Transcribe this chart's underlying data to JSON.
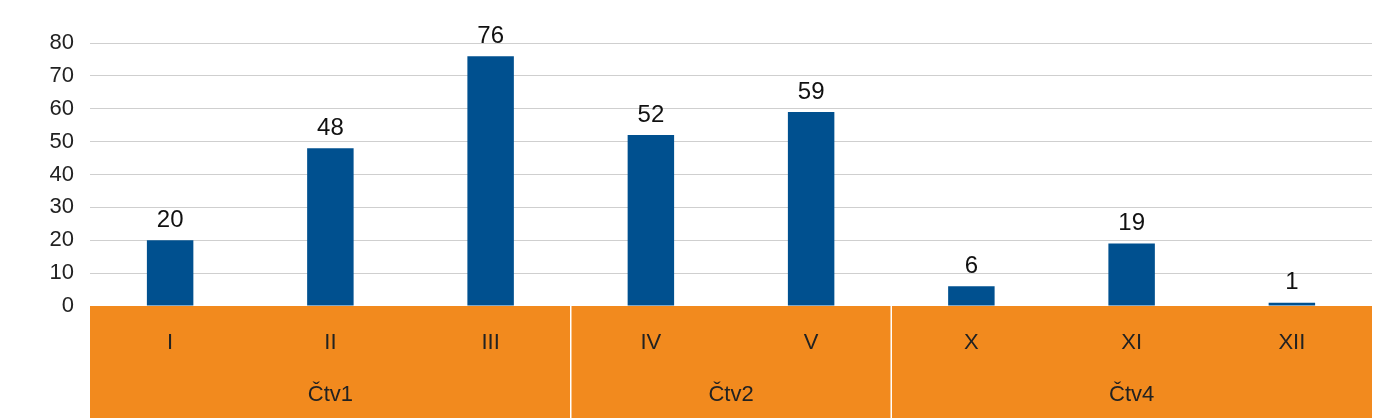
{
  "chart_data": {
    "type": "bar",
    "categories": [
      "I",
      "II",
      "III",
      "IV",
      "V",
      "X",
      "XI",
      "XII"
    ],
    "values": [
      20,
      48,
      76,
      52,
      59,
      6,
      19,
      1
    ],
    "color": "#00508f",
    "ylim": [
      0,
      80
    ],
    "yticks": [
      0,
      10,
      20,
      30,
      40,
      50,
      60,
      70,
      80
    ],
    "grid": "y",
    "data_labels": true,
    "legend": false,
    "annotations": [
      "Čtv1",
      "Čtv2",
      "Čtv4"
    ]
  }
}
